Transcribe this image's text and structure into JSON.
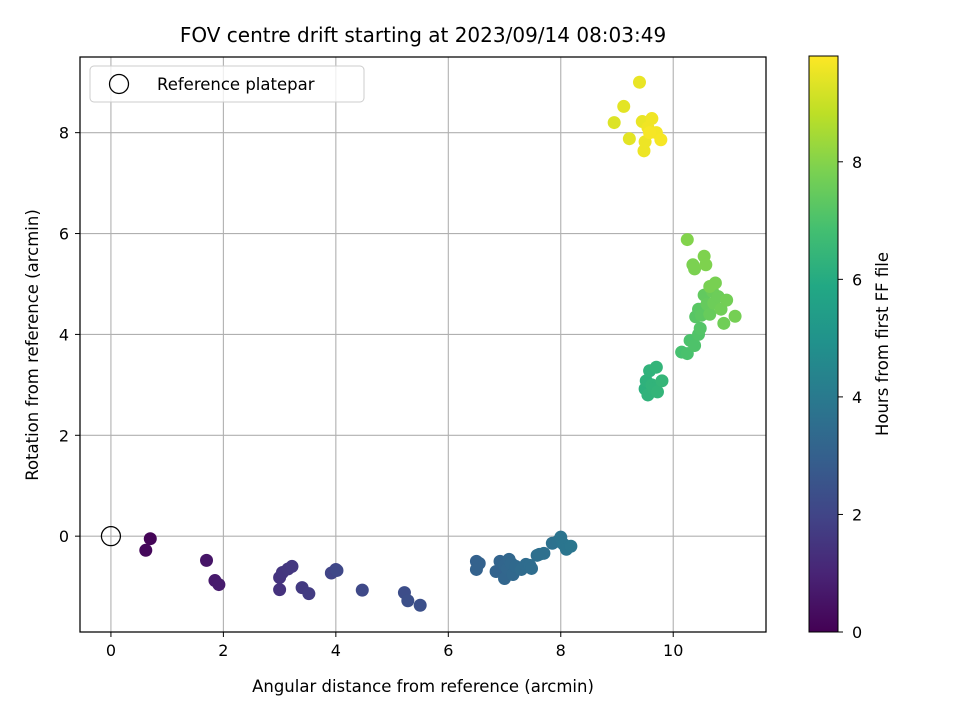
{
  "chart_data": {
    "type": "scatter",
    "title": "FOV centre drift starting at 2023/09/14 08:03:49",
    "xlabel": "Angular distance from reference (arcmin)",
    "ylabel": "Rotation from reference (arcmin)",
    "xlim": [
      -0.55,
      11.65
    ],
    "ylim": [
      -1.9,
      9.5
    ],
    "xticks": [
      0,
      2,
      4,
      6,
      8,
      10
    ],
    "yticks": [
      0,
      2,
      4,
      6,
      8
    ],
    "grid": true,
    "legend": {
      "placement": "top-left",
      "entries": [
        "Reference platepar"
      ]
    },
    "reference": {
      "x": 0,
      "y": 0
    },
    "colorbar": {
      "label": "Hours from first FF file",
      "colormap": "viridis",
      "range": [
        0,
        9.8
      ],
      "ticks": [
        0,
        2,
        4,
        6,
        8
      ]
    },
    "series": [
      {
        "points": [
          {
            "x": 0.7,
            "y": -0.05,
            "c": 0.1
          },
          {
            "x": 0.62,
            "y": -0.28,
            "c": 0.2
          },
          {
            "x": 1.7,
            "y": -0.48,
            "c": 0.55
          },
          {
            "x": 1.85,
            "y": -0.88,
            "c": 0.7
          },
          {
            "x": 1.92,
            "y": -0.96,
            "c": 0.75
          },
          {
            "x": 3.0,
            "y": -1.06,
            "c": 1.4
          },
          {
            "x": 3.0,
            "y": -0.82,
            "c": 1.45
          },
          {
            "x": 3.05,
            "y": -0.72,
            "c": 1.5
          },
          {
            "x": 3.15,
            "y": -0.65,
            "c": 1.55
          },
          {
            "x": 3.22,
            "y": -0.6,
            "c": 1.6
          },
          {
            "x": 3.4,
            "y": -1.02,
            "c": 1.65
          },
          {
            "x": 3.52,
            "y": -1.14,
            "c": 1.7
          },
          {
            "x": 3.92,
            "y": -0.73,
            "c": 2.0
          },
          {
            "x": 4.0,
            "y": -0.66,
            "c": 2.05
          },
          {
            "x": 4.02,
            "y": -0.68,
            "c": 2.1
          },
          {
            "x": 4.47,
            "y": -1.07,
            "c": 2.15
          },
          {
            "x": 5.22,
            "y": -1.12,
            "c": 2.3
          },
          {
            "x": 5.28,
            "y": -1.28,
            "c": 2.35
          },
          {
            "x": 5.5,
            "y": -1.37,
            "c": 2.4
          },
          {
            "x": 6.5,
            "y": -0.5,
            "c": 3.0
          },
          {
            "x": 6.55,
            "y": -0.54,
            "c": 3.05
          },
          {
            "x": 6.5,
            "y": -0.66,
            "c": 3.05
          },
          {
            "x": 6.85,
            "y": -0.7,
            "c": 3.1
          },
          {
            "x": 6.92,
            "y": -0.5,
            "c": 3.15
          },
          {
            "x": 7.0,
            "y": -0.58,
            "c": 3.2
          },
          {
            "x": 7.0,
            "y": -0.84,
            "c": 3.2
          },
          {
            "x": 7.05,
            "y": -0.64,
            "c": 3.25
          },
          {
            "x": 7.08,
            "y": -0.46,
            "c": 3.25
          },
          {
            "x": 7.12,
            "y": -0.54,
            "c": 3.3
          },
          {
            "x": 7.15,
            "y": -0.76,
            "c": 3.3
          },
          {
            "x": 7.2,
            "y": -0.6,
            "c": 3.35
          },
          {
            "x": 7.3,
            "y": -0.66,
            "c": 3.4
          },
          {
            "x": 7.38,
            "y": -0.56,
            "c": 3.45
          },
          {
            "x": 7.45,
            "y": -0.58,
            "c": 3.5
          },
          {
            "x": 7.48,
            "y": -0.64,
            "c": 3.5
          },
          {
            "x": 7.58,
            "y": -0.38,
            "c": 3.55
          },
          {
            "x": 7.62,
            "y": -0.36,
            "c": 3.6
          },
          {
            "x": 7.7,
            "y": -0.34,
            "c": 3.6
          },
          {
            "x": 7.85,
            "y": -0.14,
            "c": 3.65
          },
          {
            "x": 7.95,
            "y": -0.1,
            "c": 3.7
          },
          {
            "x": 8.0,
            "y": -0.02,
            "c": 3.75
          },
          {
            "x": 8.05,
            "y": -0.16,
            "c": 3.8
          },
          {
            "x": 8.1,
            "y": -0.26,
            "c": 3.8
          },
          {
            "x": 8.18,
            "y": -0.2,
            "c": 3.85
          },
          {
            "x": 9.5,
            "y": 2.92,
            "c": 6.2
          },
          {
            "x": 9.52,
            "y": 3.08,
            "c": 6.25
          },
          {
            "x": 9.55,
            "y": 2.8,
            "c": 6.3
          },
          {
            "x": 9.58,
            "y": 3.28,
            "c": 6.3
          },
          {
            "x": 9.62,
            "y": 3.0,
            "c": 6.35
          },
          {
            "x": 9.65,
            "y": 2.92,
            "c": 6.35
          },
          {
            "x": 9.7,
            "y": 3.35,
            "c": 6.4
          },
          {
            "x": 9.72,
            "y": 2.86,
            "c": 6.4
          },
          {
            "x": 9.8,
            "y": 3.08,
            "c": 6.45
          },
          {
            "x": 10.15,
            "y": 3.65,
            "c": 6.9
          },
          {
            "x": 10.25,
            "y": 3.62,
            "c": 6.95
          },
          {
            "x": 10.3,
            "y": 3.88,
            "c": 7.0
          },
          {
            "x": 10.38,
            "y": 3.78,
            "c": 7.05
          },
          {
            "x": 10.45,
            "y": 4.0,
            "c": 7.1
          },
          {
            "x": 10.48,
            "y": 4.12,
            "c": 7.15
          },
          {
            "x": 10.4,
            "y": 4.35,
            "c": 7.2
          },
          {
            "x": 10.45,
            "y": 4.5,
            "c": 7.25
          },
          {
            "x": 10.5,
            "y": 4.38,
            "c": 7.3
          },
          {
            "x": 10.55,
            "y": 4.78,
            "c": 7.4
          },
          {
            "x": 10.6,
            "y": 4.6,
            "c": 7.45
          },
          {
            "x": 10.65,
            "y": 4.4,
            "c": 7.5
          },
          {
            "x": 10.7,
            "y": 4.85,
            "c": 7.55
          },
          {
            "x": 10.72,
            "y": 4.62,
            "c": 7.6
          },
          {
            "x": 10.8,
            "y": 4.75,
            "c": 7.6
          },
          {
            "x": 10.85,
            "y": 4.5,
            "c": 7.65
          },
          {
            "x": 10.9,
            "y": 4.22,
            "c": 7.65
          },
          {
            "x": 10.95,
            "y": 4.68,
            "c": 7.7
          },
          {
            "x": 11.1,
            "y": 4.36,
            "c": 7.75
          },
          {
            "x": 10.75,
            "y": 5.02,
            "c": 7.8
          },
          {
            "x": 10.65,
            "y": 4.95,
            "c": 7.8
          },
          {
            "x": 10.35,
            "y": 5.38,
            "c": 7.85
          },
          {
            "x": 10.38,
            "y": 5.3,
            "c": 7.85
          },
          {
            "x": 10.55,
            "y": 5.55,
            "c": 7.9
          },
          {
            "x": 10.58,
            "y": 5.38,
            "c": 7.9
          },
          {
            "x": 10.25,
            "y": 5.88,
            "c": 7.95
          },
          {
            "x": 8.95,
            "y": 8.2,
            "c": 9.3
          },
          {
            "x": 9.12,
            "y": 8.52,
            "c": 9.4
          },
          {
            "x": 9.22,
            "y": 7.88,
            "c": 9.4
          },
          {
            "x": 9.4,
            "y": 9.0,
            "c": 9.5
          },
          {
            "x": 9.45,
            "y": 8.22,
            "c": 9.5
          },
          {
            "x": 9.48,
            "y": 7.64,
            "c": 9.55
          },
          {
            "x": 9.5,
            "y": 7.82,
            "c": 9.55
          },
          {
            "x": 9.55,
            "y": 8.1,
            "c": 9.6
          },
          {
            "x": 9.62,
            "y": 8.28,
            "c": 9.6
          },
          {
            "x": 9.7,
            "y": 8.0,
            "c": 9.65
          },
          {
            "x": 9.78,
            "y": 7.86,
            "c": 9.7
          },
          {
            "x": 9.58,
            "y": 8.0,
            "c": 9.7
          }
        ]
      }
    ]
  }
}
